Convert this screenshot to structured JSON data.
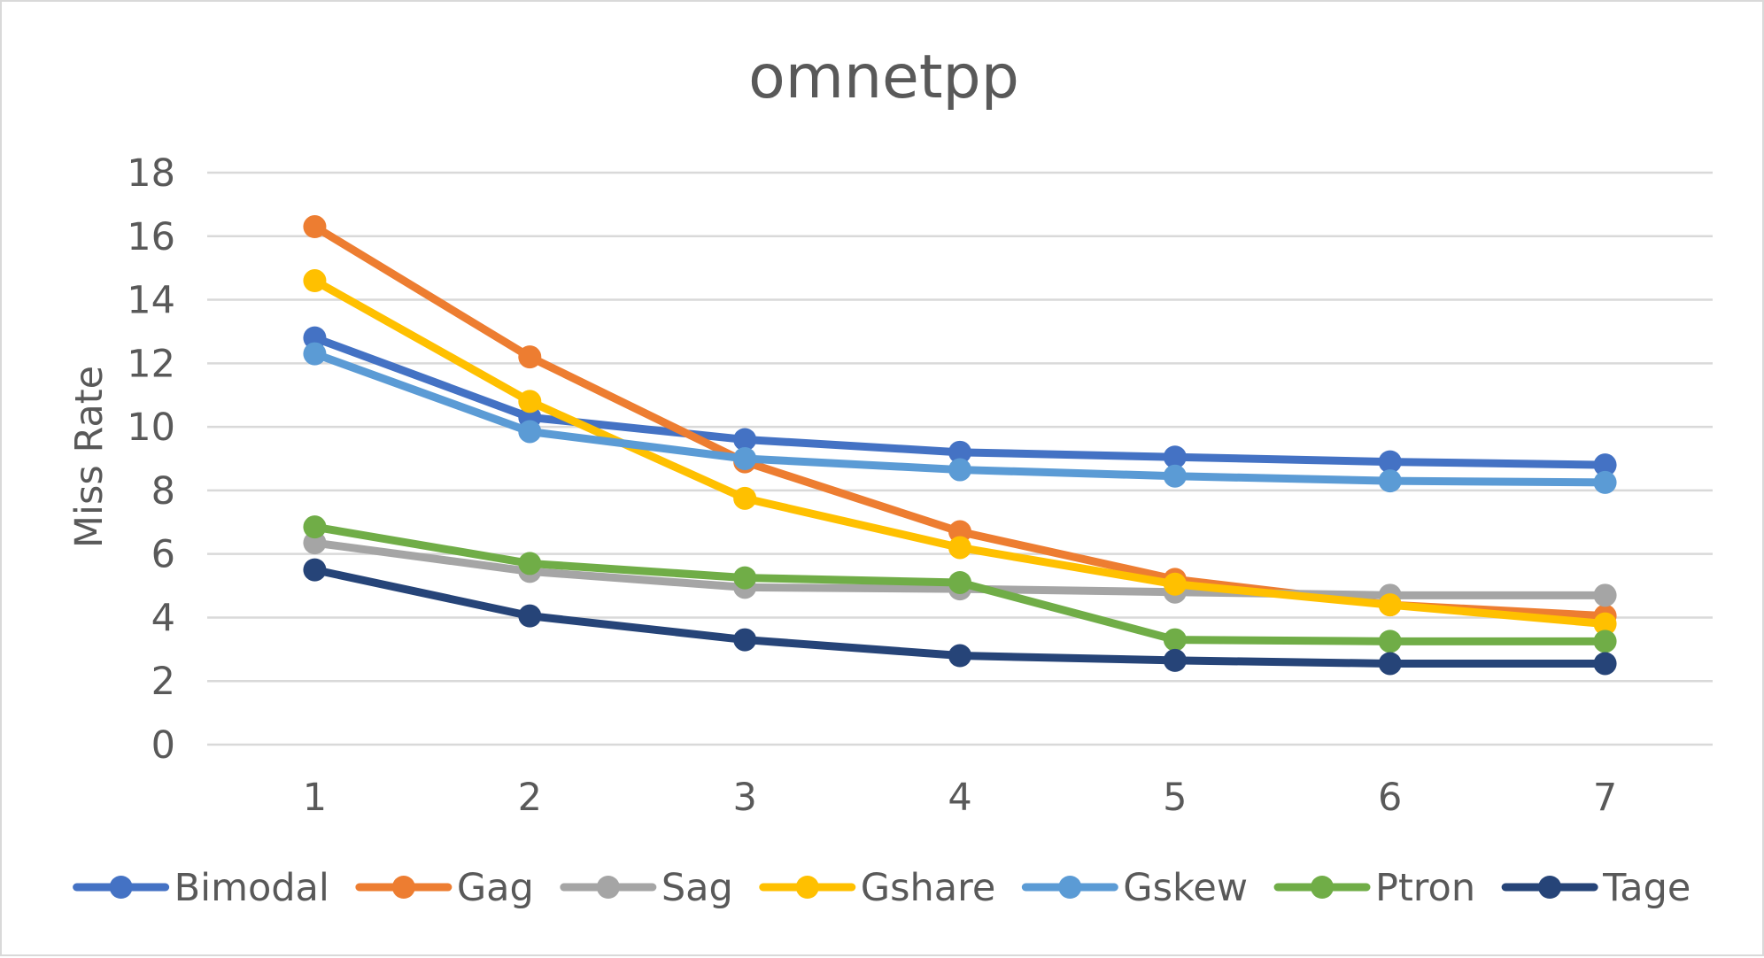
{
  "chart_data": {
    "type": "line",
    "title": "omnetpp",
    "xlabel": "",
    "ylabel": "Miss Rate",
    "categories": [
      "1",
      "2",
      "3",
      "4",
      "5",
      "6",
      "7"
    ],
    "ylim": [
      0,
      18
    ],
    "yticks": [
      "0",
      "2",
      "4",
      "6",
      "8",
      "10",
      "12",
      "14",
      "16",
      "18"
    ],
    "grid": true,
    "legend": "bottom",
    "series": [
      {
        "name": "Bimodal",
        "color": "#4472C4",
        "values": [
          12.8,
          10.3,
          9.6,
          9.2,
          9.05,
          8.9,
          8.8
        ]
      },
      {
        "name": "Gag",
        "color": "#ED7D31",
        "values": [
          16.3,
          12.2,
          8.9,
          6.7,
          5.2,
          4.4,
          4.05
        ]
      },
      {
        "name": "Sag",
        "color": "#A5A5A5",
        "values": [
          6.35,
          5.45,
          4.95,
          4.9,
          4.8,
          4.7,
          4.7
        ]
      },
      {
        "name": "Gshare",
        "color": "#FFC000",
        "values": [
          14.6,
          10.8,
          7.75,
          6.2,
          5.05,
          4.4,
          3.8
        ]
      },
      {
        "name": "Gskew",
        "color": "#5B9BD5",
        "values": [
          12.3,
          9.85,
          9.0,
          8.65,
          8.45,
          8.3,
          8.25
        ]
      },
      {
        "name": "Ptron",
        "color": "#70AD47",
        "values": [
          6.85,
          5.7,
          5.25,
          5.1,
          3.3,
          3.25,
          3.25
        ]
      },
      {
        "name": "Tage",
        "color": "#264478",
        "values": [
          5.5,
          4.05,
          3.3,
          2.8,
          2.65,
          2.55,
          2.55
        ]
      }
    ]
  }
}
